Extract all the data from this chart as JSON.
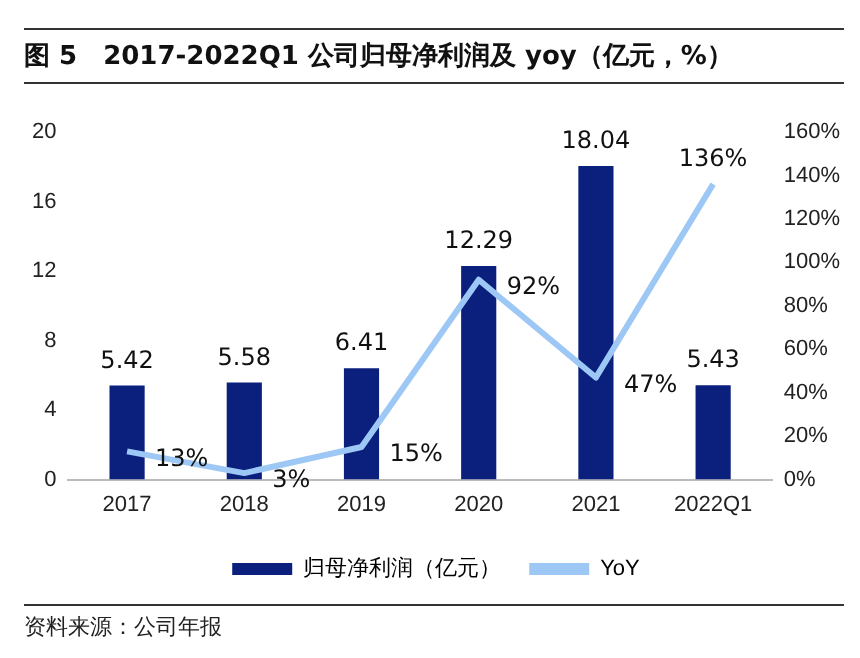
{
  "chart_data": {
    "type": "bar",
    "title": "图 5　2017-2022Q1 公司归母净利润及 yoy（亿元，%）",
    "categories": [
      "2017",
      "2018",
      "2019",
      "2020",
      "2021",
      "2022Q1"
    ],
    "series": [
      {
        "name": "归母净利润（亿元）",
        "color": "#0b1f7d",
        "values": [
          5.42,
          5.58,
          6.41,
          12.29,
          18.04,
          5.43
        ],
        "value_labels": [
          "5.42",
          "5.58",
          "6.41",
          "12.29",
          "18.04",
          "5.43"
        ]
      },
      {
        "name": "YoY",
        "type": "line",
        "axis": "y2",
        "color": "#9dc8f5",
        "values": [
          13,
          3,
          15,
          92,
          47,
          136
        ],
        "value_labels": [
          "13%",
          "3%",
          "15%",
          "92%",
          "47%",
          "136%"
        ]
      }
    ],
    "ylim": [
      0,
      20
    ],
    "yticks": [
      0,
      4,
      8,
      12,
      16,
      20
    ],
    "y2lim": [
      0,
      160
    ],
    "y2ticks": [
      {
        "value": 0,
        "label": "0%"
      },
      {
        "value": 20,
        "label": "20%"
      },
      {
        "value": 40,
        "label": "40%"
      },
      {
        "value": 60,
        "label": "60%"
      },
      {
        "value": 80,
        "label": "80%"
      },
      {
        "value": 100,
        "label": "100%"
      },
      {
        "value": 120,
        "label": "120%"
      },
      {
        "value": 140,
        "label": "140%"
      },
      {
        "value": 160,
        "label": "160%"
      }
    ],
    "grid": false,
    "legend": "bottom",
    "marker": "none",
    "annotations": [
      "资料来源：公司年报"
    ]
  }
}
